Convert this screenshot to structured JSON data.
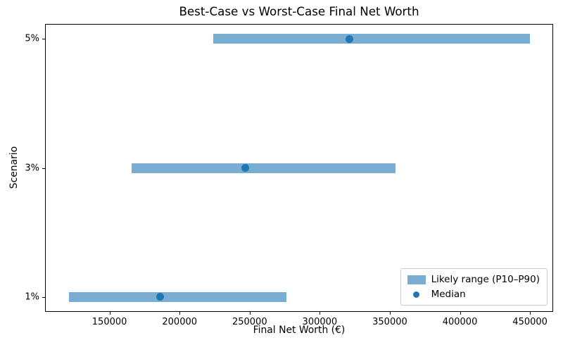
{
  "chart_data": {
    "type": "bar",
    "orientation": "horizontal",
    "title": "Best-Case vs Worst-Case Final Net Worth",
    "xlabel": "Final Net Worth (€)",
    "ylabel": "Scenario",
    "categories": [
      "1%",
      "3%",
      "5%"
    ],
    "series": [
      {
        "name": "Likely range (P10–P90)",
        "role": "range_bar",
        "low": [
          121000,
          166000,
          224000
        ],
        "high": [
          276000,
          354000,
          450000
        ]
      },
      {
        "name": "Median",
        "role": "point",
        "values": [
          186000,
          247000,
          321000
        ]
      }
    ],
    "xticks": [
      150000,
      200000,
      250000,
      300000,
      350000,
      400000,
      450000
    ],
    "xlim": [
      104000,
      466500
    ],
    "ylim": [
      -0.115,
      2.115
    ],
    "grid": false,
    "legend_position": "lower right",
    "colors": {
      "range_bar": "#79add2",
      "median": "#1f77b4",
      "spine": "#000000",
      "text": "#000000",
      "legend_border": "#cccccc"
    }
  }
}
